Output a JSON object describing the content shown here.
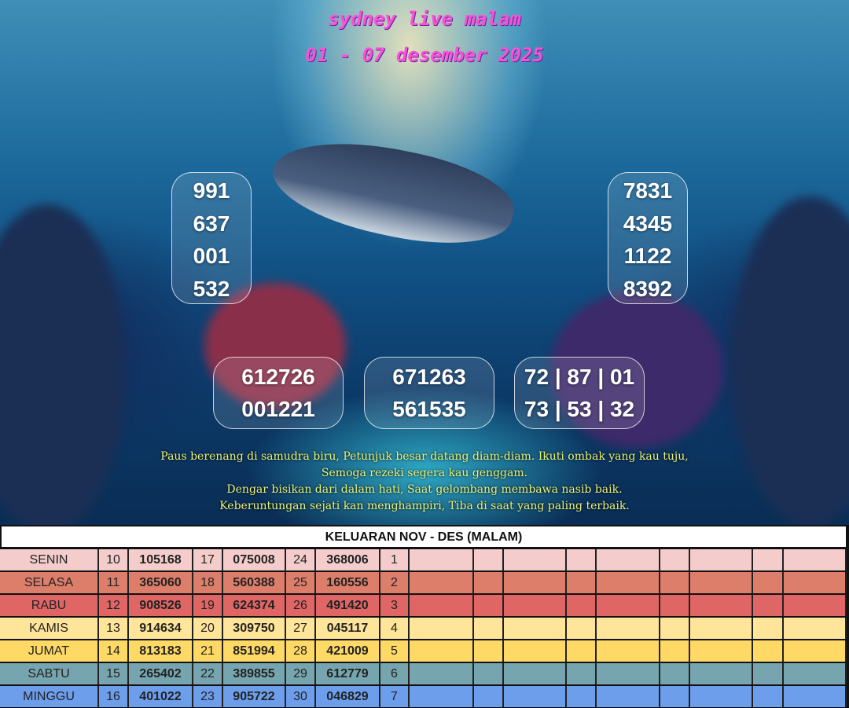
{
  "header": {
    "title": "sydney live malam",
    "period": "01 - 07 desember 2025"
  },
  "predictions": {
    "left_column": [
      "991",
      "637",
      "001",
      "532"
    ],
    "right_column": [
      "7831",
      "4345",
      "1122",
      "8392"
    ],
    "box_left": [
      "612726",
      "001221"
    ],
    "box_center": [
      "671263",
      "561535"
    ],
    "box_right": [
      "72 | 87 | 01",
      "73 | 53 | 32"
    ]
  },
  "poem": [
    "Paus berenang di samudra biru, Petunjuk besar datang diam-diam. Ikuti ombak yang kau tuju, Semoga rezeki segera kau genggam.",
    "Dengar bisikan dari dalam hati, Saat gelombang membawa nasib baik.",
    "Keberuntungan sejati kan menghampiri, Tiba di saat yang paling terbaik."
  ],
  "table": {
    "title": "KELUARAN NOV - DES (MALAM)",
    "rows": [
      {
        "day": "SENIN",
        "color": "#f4cccc",
        "cells": [
          "10",
          "105168",
          "17",
          "075008",
          "24",
          "368006",
          "1"
        ]
      },
      {
        "day": "SELASA",
        "color": "#dd7e6b",
        "cells": [
          "11",
          "365060",
          "18",
          "560388",
          "25",
          "160556",
          "2"
        ]
      },
      {
        "day": "RABU",
        "color": "#e06666",
        "cells": [
          "12",
          "908526",
          "19",
          "624374",
          "26",
          "491420",
          "3"
        ]
      },
      {
        "day": "KAMIS",
        "color": "#ffe599",
        "cells": [
          "13",
          "914634",
          "20",
          "309750",
          "27",
          "045117",
          "4"
        ]
      },
      {
        "day": "JUMAT",
        "color": "#ffd966",
        "cells": [
          "14",
          "813183",
          "21",
          "851994",
          "28",
          "421009",
          "5"
        ]
      },
      {
        "day": "SABTU",
        "color": "#76a5af",
        "cells": [
          "15",
          "265402",
          "22",
          "389855",
          "29",
          "612779",
          "6"
        ]
      },
      {
        "day": "MINGGU",
        "color": "#6d9eeb",
        "cells": [
          "16",
          "401022",
          "23",
          "905722",
          "30",
          "046829",
          "7"
        ]
      }
    ]
  }
}
